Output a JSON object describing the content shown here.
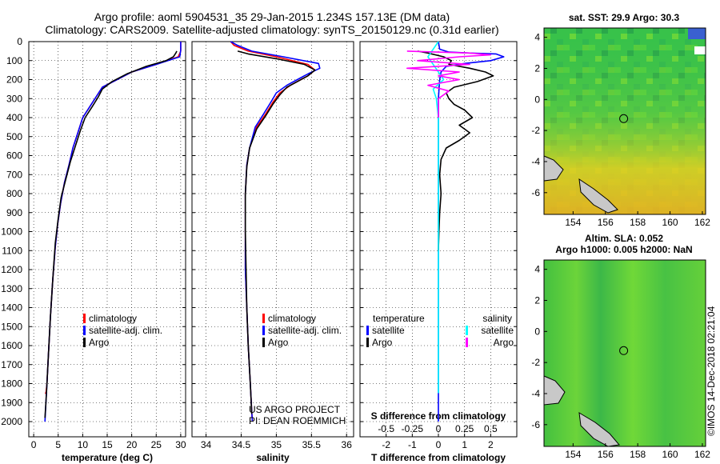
{
  "titles": {
    "line1": "Argo profile: aoml 5904531_35 29-Jan-2015 1.234S 157.13E (DM data)",
    "line2": "Climatology: CARS2009. Satellite-adjusted climatology: synTS_20150129.nc (0.31d earlier)"
  },
  "depth_axis": {
    "ticks": [
      0,
      100,
      200,
      300,
      400,
      500,
      600,
      700,
      800,
      900,
      1000,
      1100,
      1200,
      1300,
      1400,
      1500,
      1600,
      1700,
      1800,
      1900,
      2000
    ],
    "range": [
      0,
      2080
    ],
    "direction": "down"
  },
  "colors": {
    "climatology": "#ff0000",
    "satellite": "#0000ff",
    "argo": "#000000",
    "sat_salinity": "#00ffff",
    "argo_salinity": "#ff00ff"
  },
  "watermark": {
    "line1": "US ARGO PROJECT",
    "line2": "PI: DEAN ROEMMICH"
  },
  "side_label": "©IMOS 14-Dec-2018 02:21:04",
  "chart_data": [
    {
      "type": "line",
      "id": "temperature",
      "xlabel": "temperature (deg C)",
      "xlim": [
        -1,
        31
      ],
      "xticks": [
        0,
        5,
        10,
        15,
        20,
        25,
        30
      ],
      "legend": [
        "climatology",
        "satellite-adj. clim.",
        "Argo"
      ],
      "series": [
        {
          "name": "climatology",
          "color": "#ff0000",
          "x": [
            30,
            30,
            29.5,
            25,
            20,
            17,
            14,
            13,
            11.5,
            10,
            9,
            8,
            7.2,
            6.3,
            5.5,
            4.9,
            4.4,
            3.9,
            3.4,
            3.0,
            2.7,
            2.5,
            2.3
          ],
          "y": [
            0,
            50,
            80,
            120,
            160,
            200,
            240,
            280,
            340,
            400,
            480,
            560,
            650,
            740,
            850,
            960,
            1080,
            1250,
            1450,
            1650,
            1800,
            1850,
            1850
          ]
        },
        {
          "name": "satellite-adj. clim.",
          "color": "#0000ff",
          "x": [
            30,
            30,
            29.8,
            25,
            20,
            17,
            14,
            13,
            11.5,
            10,
            9,
            8,
            7.2,
            6.3,
            5.5,
            4.9,
            4.4,
            3.9,
            3.4,
            3.0,
            2.7,
            2.5,
            2.3
          ],
          "y": [
            0,
            45,
            80,
            120,
            160,
            200,
            240,
            280,
            340,
            400,
            480,
            560,
            650,
            740,
            850,
            960,
            1080,
            1250,
            1450,
            1650,
            1800,
            1900,
            2000
          ]
        },
        {
          "name": "Argo",
          "color": "#000000",
          "x": [
            29.2,
            29.0,
            28.5,
            27,
            23,
            19,
            16,
            14,
            13.2,
            12,
            10.5,
            9.5,
            8.5,
            7.5,
            6.6,
            5.6,
            5.0,
            4.4,
            3.9,
            3.4,
            3.0,
            2.7,
            2.5,
            2.3
          ],
          "y": [
            50,
            60,
            80,
            100,
            130,
            170,
            210,
            250,
            290,
            340,
            400,
            470,
            550,
            630,
            720,
            820,
            930,
            1060,
            1250,
            1450,
            1650,
            1800,
            1900,
            1980
          ]
        }
      ]
    },
    {
      "type": "line",
      "id": "salinity",
      "xlabel": "salinity",
      "xlim": [
        33.8,
        36.1
      ],
      "xticks": [
        34,
        34.5,
        35,
        35.5,
        36
      ],
      "xticklabels": [
        "34",
        "34.5",
        "35",
        "35.5",
        "36"
      ],
      "legend": [
        "climatology",
        "satellite-adj. clim.",
        "Argo"
      ],
      "series": [
        {
          "name": "climatology",
          "color": "#ff0000",
          "x": [
            34.35,
            34.4,
            34.6,
            35.0,
            35.45,
            35.55,
            35.45,
            35.35,
            35.2,
            35.05,
            34.95,
            34.85,
            34.72,
            34.62,
            34.58,
            34.56,
            34.56,
            34.56,
            34.58,
            34.6,
            34.63,
            34.65,
            34.66
          ],
          "y": [
            0,
            20,
            50,
            80,
            120,
            150,
            180,
            200,
            230,
            270,
            320,
            380,
            450,
            560,
            650,
            800,
            1000,
            1200,
            1400,
            1600,
            1800,
            1950,
            2000
          ]
        },
        {
          "name": "satellite-adj. clim.",
          "color": "#0000ff",
          "x": [
            34.35,
            34.45,
            34.65,
            35.1,
            35.6,
            35.62,
            35.45,
            35.3,
            35.15,
            35.0,
            34.92,
            34.82,
            34.7,
            34.62,
            34.58,
            34.56,
            34.56,
            34.56,
            34.58,
            34.6,
            34.63,
            34.65,
            34.66
          ],
          "y": [
            0,
            20,
            50,
            80,
            115,
            140,
            170,
            200,
            230,
            270,
            320,
            380,
            450,
            560,
            650,
            800,
            1000,
            1200,
            1400,
            1600,
            1800,
            1950,
            2000
          ]
        },
        {
          "name": "Argo",
          "color": "#000000",
          "x": [
            34.45,
            34.6,
            35.0,
            35.4,
            35.55,
            35.45,
            35.3,
            35.15,
            35.05,
            34.95,
            34.85,
            34.72,
            34.62,
            34.58,
            34.56,
            34.56,
            34.57,
            34.58,
            34.6,
            34.63,
            34.65
          ],
          "y": [
            50,
            65,
            90,
            120,
            150,
            180,
            210,
            240,
            280,
            330,
            390,
            460,
            560,
            660,
            800,
            1000,
            1200,
            1400,
            1600,
            1800,
            1960
          ]
        }
      ]
    },
    {
      "type": "line",
      "id": "difference",
      "xlabel": "T difference from climatology",
      "x2label": "S difference from climatology",
      "xlim": [
        -3,
        3
      ],
      "xticks": [
        -2,
        -1,
        0,
        1,
        2
      ],
      "x2ticks": [
        -0.5,
        -0.25,
        0,
        0.25,
        0.5
      ],
      "x2ticklabels": [
        "-0.5",
        "-0.25",
        "0",
        "0.25",
        "0.5"
      ],
      "legend_left_title": "temperature",
      "legend_right_title": "salinity",
      "legend_left": [
        "satellite",
        "Argo"
      ],
      "legend_right": [
        "satellite",
        "Argo"
      ],
      "series": [
        {
          "name": "satellite",
          "quantity": "temperature",
          "color": "#0000ff",
          "x": [
            0,
            0.05,
            0.4,
            1.2,
            2.2,
            2.5,
            2.0,
            1.0,
            0.3,
            0.1,
            0.05,
            0,
            0,
            0,
            0,
            0,
            0
          ],
          "y": [
            0,
            40,
            55,
            60,
            65,
            80,
            100,
            115,
            130,
            160,
            200,
            300,
            500,
            800,
            1200,
            1600,
            2000
          ]
        },
        {
          "name": "Argo",
          "quantity": "temperature",
          "color": "#000000",
          "x": [
            -0.8,
            -0.4,
            0.2,
            0.5,
            0.4,
            1.2,
            1.8,
            2.1,
            1.5,
            0.6,
            0.3,
            0.4,
            0.6,
            1.0,
            1.3,
            0.8,
            1.2,
            0.8,
            0.3,
            0.1,
            0.05,
            0.1,
            0.05,
            0.02,
            0
          ],
          "y": [
            50,
            60,
            80,
            100,
            120,
            140,
            160,
            180,
            210,
            240,
            270,
            300,
            330,
            360,
            400,
            440,
            480,
            520,
            560,
            620,
            700,
            800,
            900,
            1000,
            1100
          ]
        },
        {
          "name": "satellite",
          "quantity": "salinity",
          "color": "#00ffff",
          "x": [
            0,
            -0.05,
            -0.1,
            -0.05,
            0,
            0.05,
            -0.05,
            -0.02,
            0,
            0,
            0,
            0,
            0,
            0
          ],
          "y": [
            0,
            40,
            80,
            120,
            160,
            200,
            250,
            300,
            400,
            600,
            900,
            1300,
            1700,
            1850
          ]
        },
        {
          "name": "Argo",
          "quantity": "salinity",
          "color": "#ff00ff",
          "x": [
            -0.3,
            0.3,
            0.5,
            0.2,
            -0.2,
            0.3,
            -0.3,
            0.2,
            0.0,
            0.2,
            -0.1,
            0.1,
            0,
            0
          ],
          "y": [
            50,
            60,
            70,
            80,
            100,
            120,
            140,
            160,
            180,
            200,
            230,
            260,
            300,
            400
          ]
        }
      ]
    },
    {
      "type": "heatmap",
      "id": "sst_map",
      "title": "sat. SST: 29.9 Argo: 30.3",
      "xlim": [
        152.2,
        162.2
      ],
      "ylim": [
        -7.4,
        4.6
      ],
      "xticks": [
        154,
        156,
        158,
        160,
        162
      ],
      "yticks": [
        -6,
        -4,
        -2,
        0,
        2,
        4
      ],
      "marker": {
        "lon": 157.13,
        "lat": -1.234
      }
    },
    {
      "type": "heatmap",
      "id": "sla_map",
      "title": "Altim. SLA: 0.052",
      "subtitle": "Argo h1000: 0.005 h2000: NaN",
      "xlim": [
        152.2,
        162.2
      ],
      "ylim": [
        -7.4,
        4.6
      ],
      "xticks": [
        154,
        156,
        158,
        160,
        162
      ],
      "yticks": [
        -6,
        -4,
        -2,
        0,
        2,
        4
      ],
      "marker": {
        "lon": 157.13,
        "lat": -1.234
      }
    }
  ]
}
